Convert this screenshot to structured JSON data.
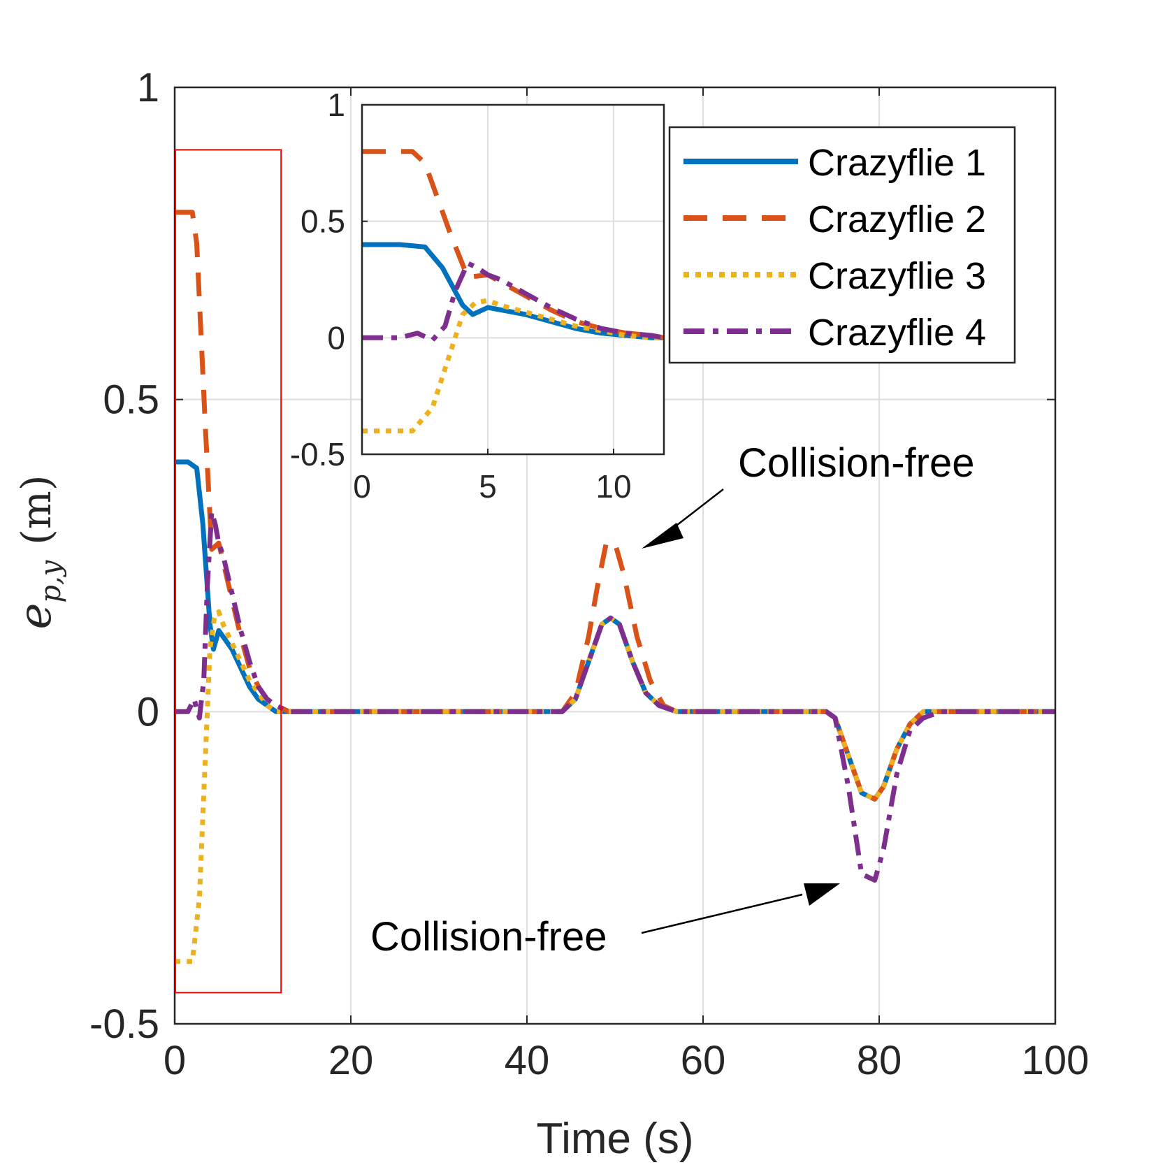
{
  "chart_data": {
    "type": "line",
    "xlabel": "Time (s)",
    "ylabel_symbol": "e",
    "ylabel_subscript": "p,y",
    "ylabel_unit": "(m)",
    "xlim": [
      0,
      100
    ],
    "ylim": [
      -0.5,
      1
    ],
    "xticks": [
      "0",
      "20",
      "40",
      "60",
      "80",
      "100"
    ],
    "yticks": [
      "-0.5",
      "0",
      "0.5",
      "1"
    ],
    "grid": true,
    "legend_position": "top-right",
    "series": [
      {
        "name": "Crazyflie 1",
        "color": "#0072BD",
        "dash": "solid",
        "x": [
          0,
          1.5,
          2.5,
          3.2,
          4.0,
          4.4,
          5.0,
          5.5,
          6.5,
          7.5,
          8.5,
          9.5,
          10.5,
          11.5,
          13,
          44,
          45.5,
          47,
          48.5,
          49.5,
          50.5,
          52,
          53.5,
          55,
          57,
          74,
          75,
          76.5,
          78,
          79.5,
          80.5,
          82,
          83.5,
          85,
          87,
          90,
          100
        ],
        "y": [
          0.4,
          0.4,
          0.39,
          0.3,
          0.14,
          0.1,
          0.13,
          0.12,
          0.1,
          0.07,
          0.04,
          0.02,
          0.01,
          0.0,
          0.0,
          0.0,
          0.02,
          0.08,
          0.14,
          0.15,
          0.14,
          0.08,
          0.03,
          0.01,
          0.0,
          0.0,
          -0.01,
          -0.07,
          -0.13,
          -0.14,
          -0.12,
          -0.06,
          -0.02,
          0.0,
          0.0,
          0.0,
          0.0
        ]
      },
      {
        "name": "Crazyflie 2",
        "color": "#D95319",
        "dash": "long-dash",
        "x": [
          0,
          2.0,
          2.5,
          3.0,
          3.5,
          4.2,
          5.0,
          5.5,
          6.5,
          7.5,
          8.5,
          9.5,
          10.5,
          11.5,
          13,
          44,
          45.5,
          47,
          48,
          49,
          50,
          51,
          52.5,
          54,
          55.5,
          57,
          74,
          75,
          76.5,
          78,
          79.5,
          80.5,
          82,
          83.5,
          85,
          87,
          90,
          100
        ],
        "y": [
          0.8,
          0.8,
          0.75,
          0.6,
          0.45,
          0.26,
          0.27,
          0.24,
          0.18,
          0.12,
          0.07,
          0.04,
          0.02,
          0.01,
          0.0,
          0.0,
          0.03,
          0.12,
          0.2,
          0.27,
          0.27,
          0.22,
          0.12,
          0.05,
          0.01,
          0.0,
          0.0,
          -0.01,
          -0.07,
          -0.13,
          -0.14,
          -0.12,
          -0.06,
          -0.02,
          0.0,
          0.0,
          0.0,
          0.0
        ]
      },
      {
        "name": "Crazyflie 3",
        "color": "#EDB120",
        "dash": "dotted",
        "x": [
          0,
          2.0,
          2.8,
          3.4,
          4.0,
          4.5,
          5.0,
          5.5,
          6.5,
          7.5,
          8.5,
          9.5,
          10.5,
          11.5,
          13,
          44,
          45.5,
          47,
          48.5,
          49.5,
          50.5,
          52,
          53.5,
          55,
          57,
          74,
          75,
          76.5,
          78,
          79.5,
          80.5,
          82,
          83.5,
          85,
          87,
          90,
          100
        ],
        "y": [
          -0.4,
          -0.4,
          -0.3,
          -0.1,
          0.1,
          0.15,
          0.16,
          0.14,
          0.11,
          0.08,
          0.05,
          0.03,
          0.01,
          0.0,
          0.0,
          0.0,
          0.02,
          0.08,
          0.14,
          0.15,
          0.14,
          0.08,
          0.03,
          0.01,
          0.0,
          0.0,
          -0.01,
          -0.07,
          -0.13,
          -0.14,
          -0.12,
          -0.06,
          -0.02,
          0.0,
          0.0,
          0.0,
          0.0
        ]
      },
      {
        "name": "Crazyflie 4",
        "color": "#7E2F8E",
        "dash": "dash-dot",
        "x": [
          0,
          1.5,
          2.2,
          2.8,
          3.3,
          3.7,
          4.2,
          4.6,
          5.0,
          5.5,
          6.5,
          7.5,
          8.5,
          9.5,
          10.5,
          11.5,
          13,
          44,
          45.5,
          47,
          48.5,
          49.5,
          50.5,
          52,
          53.5,
          55,
          57,
          74,
          75,
          76.5,
          78,
          79.5,
          80.5,
          82,
          83.5,
          85,
          87,
          90,
          100
        ],
        "y": [
          0.0,
          0.0,
          0.02,
          -0.01,
          0.05,
          0.2,
          0.32,
          0.3,
          0.27,
          0.25,
          0.19,
          0.13,
          0.08,
          0.04,
          0.02,
          0.01,
          0.0,
          0.0,
          0.02,
          0.08,
          0.14,
          0.15,
          0.14,
          0.08,
          0.03,
          0.01,
          0.0,
          0.0,
          -0.01,
          -0.12,
          -0.26,
          -0.27,
          -0.22,
          -0.1,
          -0.03,
          -0.01,
          0.0,
          0.0,
          0.0
        ]
      }
    ],
    "inset": {
      "xlim": [
        0,
        12
      ],
      "ylim": [
        -0.5,
        1
      ],
      "xticks": [
        "0",
        "5",
        "10"
      ],
      "yticks": [
        "-0.5",
        "0",
        "0.5",
        "1"
      ]
    },
    "zoom_box_color": "#FF0000",
    "annotations": [
      "Collision-free",
      "Collision-free"
    ]
  }
}
